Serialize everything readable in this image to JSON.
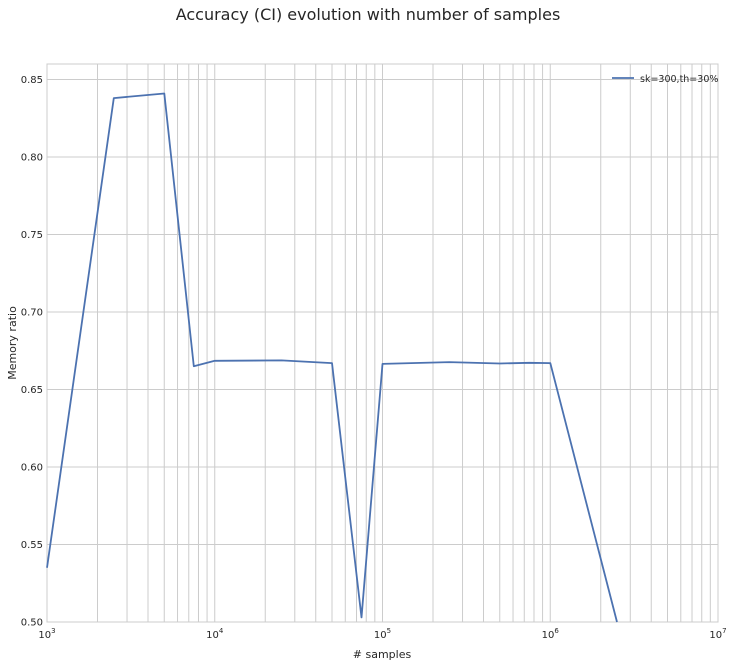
{
  "chart_data": {
    "type": "line",
    "title": "Accuracy (CI) evolution with number of samples",
    "xlabel": "# samples",
    "ylabel": "Memory ratio",
    "x_scale": "log",
    "xlim": [
      1000,
      10000000
    ],
    "ylim": [
      0.5,
      0.86
    ],
    "x_ticks": [
      {
        "value": 1000,
        "base": "10",
        "exp": "3"
      },
      {
        "value": 10000,
        "base": "10",
        "exp": "4"
      },
      {
        "value": 100000,
        "base": "10",
        "exp": "5"
      },
      {
        "value": 1000000,
        "base": "10",
        "exp": "6"
      },
      {
        "value": 10000000,
        "base": "10",
        "exp": "7"
      }
    ],
    "y_ticks": [
      "0.50",
      "0.55",
      "0.60",
      "0.65",
      "0.70",
      "0.75",
      "0.80",
      "0.85"
    ],
    "grid": true,
    "legend_position": "top-right",
    "series": [
      {
        "name": "sk=300,th=30%",
        "color": "#4c72b0",
        "points": [
          [
            1000,
            0.535
          ],
          [
            2500,
            0.838
          ],
          [
            5000,
            0.841
          ],
          [
            7500,
            0.665
          ],
          [
            10000,
            0.6685
          ],
          [
            25000,
            0.6688
          ],
          [
            50000,
            0.667
          ],
          [
            75000,
            0.503
          ],
          [
            100000,
            0.6665
          ],
          [
            250000,
            0.6677
          ],
          [
            500000,
            0.6668
          ],
          [
            750000,
            0.6672
          ],
          [
            1000000,
            0.667
          ],
          [
            2500000,
            0.5
          ]
        ]
      }
    ]
  }
}
